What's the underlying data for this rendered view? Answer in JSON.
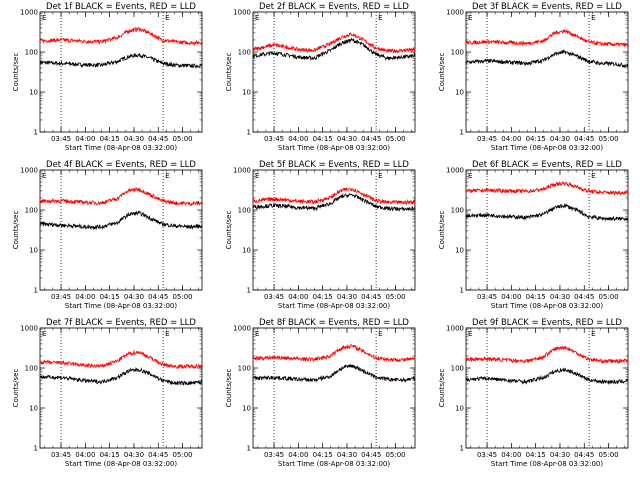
{
  "chart_data": [
    {
      "type": "line",
      "title": "Det 1f BLACK = Events, RED = LLD",
      "xlabel": "Start Time (08-Apr-08 03:32:00)",
      "ylabel": "Counts/sec",
      "yscale": "log",
      "ylim": [
        1,
        1000
      ],
      "xlim": [
        "03:32",
        "05:12"
      ],
      "x_ticks": [
        "03:45",
        "04:00",
        "04:15",
        "04:30",
        "04:45",
        "05:00"
      ],
      "y_ticks": [
        "1",
        "10",
        "100",
        "1000"
      ],
      "markers": [
        {
          "x": "03:45",
          "label": ""
        },
        {
          "x": "04:48",
          "label": "E"
        }
      ],
      "top_left_label": "E",
      "x": [
        "03:32",
        "03:45",
        "04:00",
        "04:10",
        "04:20",
        "04:27",
        "04:33",
        "04:40",
        "04:47",
        "04:55",
        "05:05",
        "05:12"
      ],
      "series": [
        {
          "name": "Events",
          "color": "#000000",
          "values": [
            55,
            52,
            48,
            47,
            58,
            78,
            85,
            70,
            53,
            47,
            45,
            46
          ]
        },
        {
          "name": "LLD",
          "color": "#ff0000",
          "values": [
            190,
            200,
            185,
            180,
            230,
            340,
            380,
            290,
            200,
            180,
            170,
            175
          ]
        }
      ]
    },
    {
      "type": "line",
      "title": "Det 2f BLACK = Events, RED = LLD",
      "xlabel": "Start Time (08-Apr-08 03:32:00)",
      "ylabel": "Counts/sec",
      "yscale": "log",
      "ylim": [
        1,
        1000
      ],
      "xlim": [
        "03:32",
        "05:12"
      ],
      "x_ticks": [
        "03:45",
        "04:00",
        "04:15",
        "04:30",
        "04:45",
        "05:00"
      ],
      "y_ticks": [
        "1",
        "10",
        "100",
        "1000"
      ],
      "markers": [
        {
          "x": "03:45",
          "label": ""
        },
        {
          "x": "04:48",
          "label": "E"
        }
      ],
      "top_left_label": "E",
      "x": [
        "03:32",
        "03:45",
        "04:00",
        "04:10",
        "04:20",
        "04:27",
        "04:33",
        "04:40",
        "04:47",
        "04:55",
        "05:05",
        "05:12"
      ],
      "series": [
        {
          "name": "Events",
          "color": "#000000",
          "values": [
            80,
            95,
            75,
            70,
            110,
            170,
            200,
            150,
            90,
            70,
            75,
            80
          ]
        },
        {
          "name": "LLD",
          "color": "#ff0000",
          "values": [
            115,
            150,
            115,
            110,
            160,
            240,
            280,
            200,
            130,
            105,
            110,
            115
          ]
        }
      ]
    },
    {
      "type": "line",
      "title": "Det 3f BLACK = Events, RED = LLD",
      "xlabel": "Start Time (08-Apr-08 03:32:00)",
      "ylabel": "Counts/sec",
      "yscale": "log",
      "ylim": [
        1,
        1000
      ],
      "xlim": [
        "03:32",
        "05:12"
      ],
      "x_ticks": [
        "03:45",
        "04:00",
        "04:15",
        "04:30",
        "04:45",
        "05:00"
      ],
      "y_ticks": [
        "1",
        "10",
        "100",
        "1000"
      ],
      "markers": [
        {
          "x": "03:45",
          "label": ""
        },
        {
          "x": "04:48",
          "label": "E"
        }
      ],
      "top_left_label": "E",
      "x": [
        "03:32",
        "03:45",
        "04:00",
        "04:10",
        "04:20",
        "04:27",
        "04:33",
        "04:40",
        "04:47",
        "04:55",
        "05:05",
        "05:12"
      ],
      "series": [
        {
          "name": "Events",
          "color": "#000000",
          "values": [
            55,
            60,
            55,
            52,
            62,
            90,
            100,
            80,
            60,
            52,
            50,
            45
          ]
        },
        {
          "name": "LLD",
          "color": "#ff0000",
          "values": [
            170,
            180,
            170,
            165,
            190,
            300,
            340,
            250,
            180,
            160,
            155,
            150
          ]
        }
      ]
    },
    {
      "type": "line",
      "title": "Det 4f BLACK = Events, RED = LLD",
      "xlabel": "Start Time (08-Apr-08 03:32:00)",
      "ylabel": "Counts/sec",
      "yscale": "log",
      "ylim": [
        1,
        1000
      ],
      "xlim": [
        "03:32",
        "05:12"
      ],
      "x_ticks": [
        "03:45",
        "04:00",
        "04:15",
        "04:30",
        "04:45",
        "05:00"
      ],
      "y_ticks": [
        "1",
        "10",
        "100",
        "1000"
      ],
      "markers": [
        {
          "x": "03:45",
          "label": ""
        },
        {
          "x": "04:48",
          "label": "E"
        }
      ],
      "top_left_label": "E",
      "x": [
        "03:32",
        "03:45",
        "04:00",
        "04:10",
        "04:20",
        "04:27",
        "04:33",
        "04:40",
        "04:47",
        "04:55",
        "05:05",
        "05:12"
      ],
      "series": [
        {
          "name": "Events",
          "color": "#000000",
          "values": [
            45,
            42,
            38,
            38,
            48,
            78,
            85,
            62,
            45,
            40,
            38,
            40
          ]
        },
        {
          "name": "LLD",
          "color": "#ff0000",
          "values": [
            165,
            170,
            155,
            150,
            195,
            310,
            330,
            240,
            170,
            150,
            145,
            150
          ]
        }
      ]
    },
    {
      "type": "line",
      "title": "Det 5f BLACK = Events, RED = LLD",
      "xlabel": "Start Time (08-Apr-08 03:32:00)",
      "ylabel": "Counts/sec",
      "yscale": "log",
      "ylim": [
        1,
        1000
      ],
      "xlim": [
        "03:32",
        "05:12"
      ],
      "x_ticks": [
        "03:45",
        "04:00",
        "04:15",
        "04:30",
        "04:45",
        "05:00"
      ],
      "y_ticks": [
        "1",
        "10",
        "100",
        "1000"
      ],
      "markers": [
        {
          "x": "03:45",
          "label": ""
        },
        {
          "x": "04:48",
          "label": "E"
        }
      ],
      "top_left_label": "E",
      "x": [
        "03:32",
        "03:45",
        "04:00",
        "04:10",
        "04:20",
        "04:27",
        "04:33",
        "04:40",
        "04:47",
        "04:55",
        "05:05",
        "05:12"
      ],
      "series": [
        {
          "name": "Events",
          "color": "#000000",
          "values": [
            120,
            130,
            115,
            110,
            145,
            220,
            240,
            180,
            125,
            110,
            105,
            110
          ]
        },
        {
          "name": "LLD",
          "color": "#ff0000",
          "values": [
            165,
            190,
            165,
            160,
            205,
            310,
            340,
            250,
            175,
            155,
            155,
            160
          ]
        }
      ]
    },
    {
      "type": "line",
      "title": "Det 6f BLACK = Events, RED = LLD",
      "xlabel": "Start Time (08-Apr-08 03:32:00)",
      "ylabel": "Counts/sec",
      "yscale": "log",
      "ylim": [
        1,
        1000
      ],
      "xlim": [
        "03:32",
        "05:12"
      ],
      "x_ticks": [
        "03:45",
        "04:00",
        "04:15",
        "04:30",
        "04:45",
        "05:00"
      ],
      "y_ticks": [
        "1",
        "10",
        "100",
        "1000"
      ],
      "markers": [
        {
          "x": "03:45",
          "label": ""
        },
        {
          "x": "04:48",
          "label": "E"
        }
      ],
      "top_left_label": "E",
      "x": [
        "03:32",
        "03:45",
        "04:00",
        "04:10",
        "04:20",
        "04:27",
        "04:33",
        "04:40",
        "04:47",
        "04:55",
        "05:05",
        "05:12"
      ],
      "series": [
        {
          "name": "Events",
          "color": "#000000",
          "values": [
            72,
            75,
            68,
            65,
            78,
            115,
            130,
            100,
            70,
            62,
            60,
            62
          ]
        },
        {
          "name": "LLD",
          "color": "#ff0000",
          "values": [
            300,
            310,
            300,
            295,
            330,
            440,
            470,
            380,
            300,
            275,
            270,
            275
          ]
        }
      ]
    },
    {
      "type": "line",
      "title": "Det 7f BLACK = Events, RED = LLD",
      "xlabel": "Start Time (08-Apr-08 03:32:00)",
      "ylabel": "Counts/sec",
      "yscale": "log",
      "ylim": [
        1,
        1000
      ],
      "xlim": [
        "03:32",
        "05:12"
      ],
      "x_ticks": [
        "03:45",
        "04:00",
        "04:15",
        "04:30",
        "04:45",
        "05:00"
      ],
      "y_ticks": [
        "1",
        "10",
        "100",
        "1000"
      ],
      "markers": [
        {
          "x": "03:45",
          "label": ""
        },
        {
          "x": "04:48",
          "label": "E"
        }
      ],
      "top_left_label": "E",
      "x": [
        "03:32",
        "03:45",
        "04:00",
        "04:10",
        "04:20",
        "04:27",
        "04:33",
        "04:40",
        "04:47",
        "04:55",
        "05:05",
        "05:12"
      ],
      "series": [
        {
          "name": "Events",
          "color": "#000000",
          "values": [
            60,
            58,
            48,
            45,
            58,
            85,
            92,
            70,
            50,
            42,
            42,
            44
          ]
        },
        {
          "name": "LLD",
          "color": "#ff0000",
          "values": [
            140,
            135,
            115,
            110,
            150,
            230,
            250,
            180,
            125,
            110,
            110,
            115
          ]
        }
      ]
    },
    {
      "type": "line",
      "title": "Det 8f BLACK = Events, RED = LLD",
      "xlabel": "Start Time (08-Apr-08 03:32:00)",
      "ylabel": "Counts/sec",
      "yscale": "log",
      "ylim": [
        1,
        1000
      ],
      "xlim": [
        "03:32",
        "05:12"
      ],
      "x_ticks": [
        "03:45",
        "04:00",
        "04:15",
        "04:30",
        "04:45",
        "05:00"
      ],
      "y_ticks": [
        "1",
        "10",
        "100",
        "1000"
      ],
      "markers": [
        {
          "x": "03:45",
          "label": ""
        },
        {
          "x": "04:48",
          "label": "E"
        }
      ],
      "top_left_label": "E",
      "x": [
        "03:32",
        "03:45",
        "04:00",
        "04:10",
        "04:20",
        "04:27",
        "04:33",
        "04:40",
        "04:47",
        "04:55",
        "05:05",
        "05:12"
      ],
      "series": [
        {
          "name": "Events",
          "color": "#000000",
          "values": [
            55,
            58,
            52,
            50,
            62,
            100,
            115,
            85,
            60,
            52,
            50,
            55
          ]
        },
        {
          "name": "LLD",
          "color": "#ff0000",
          "values": [
            175,
            185,
            170,
            165,
            200,
            320,
            360,
            260,
            185,
            165,
            160,
            170
          ]
        }
      ]
    },
    {
      "type": "line",
      "title": "Det 9f BLACK = Events, RED = LLD",
      "xlabel": "Start Time (08-Apr-08 03:32:00)",
      "ylabel": "Counts/sec",
      "yscale": "log",
      "ylim": [
        1,
        1000
      ],
      "xlim": [
        "03:32",
        "05:12"
      ],
      "x_ticks": [
        "03:45",
        "04:00",
        "04:15",
        "04:30",
        "04:45",
        "05:00"
      ],
      "y_ticks": [
        "1",
        "10",
        "100",
        "1000"
      ],
      "markers": [
        {
          "x": "03:45",
          "label": ""
        },
        {
          "x": "04:48",
          "label": "E"
        }
      ],
      "top_left_label": "E",
      "x": [
        "03:32",
        "03:45",
        "04:00",
        "04:10",
        "04:20",
        "04:27",
        "04:33",
        "04:40",
        "04:47",
        "04:55",
        "05:05",
        "05:12"
      ],
      "series": [
        {
          "name": "Events",
          "color": "#000000",
          "values": [
            52,
            55,
            48,
            46,
            58,
            82,
            92,
            72,
            52,
            46,
            45,
            48
          ]
        },
        {
          "name": "LLD",
          "color": "#ff0000",
          "values": [
            165,
            170,
            155,
            150,
            190,
            300,
            330,
            240,
            170,
            150,
            148,
            155
          ]
        }
      ]
    }
  ]
}
